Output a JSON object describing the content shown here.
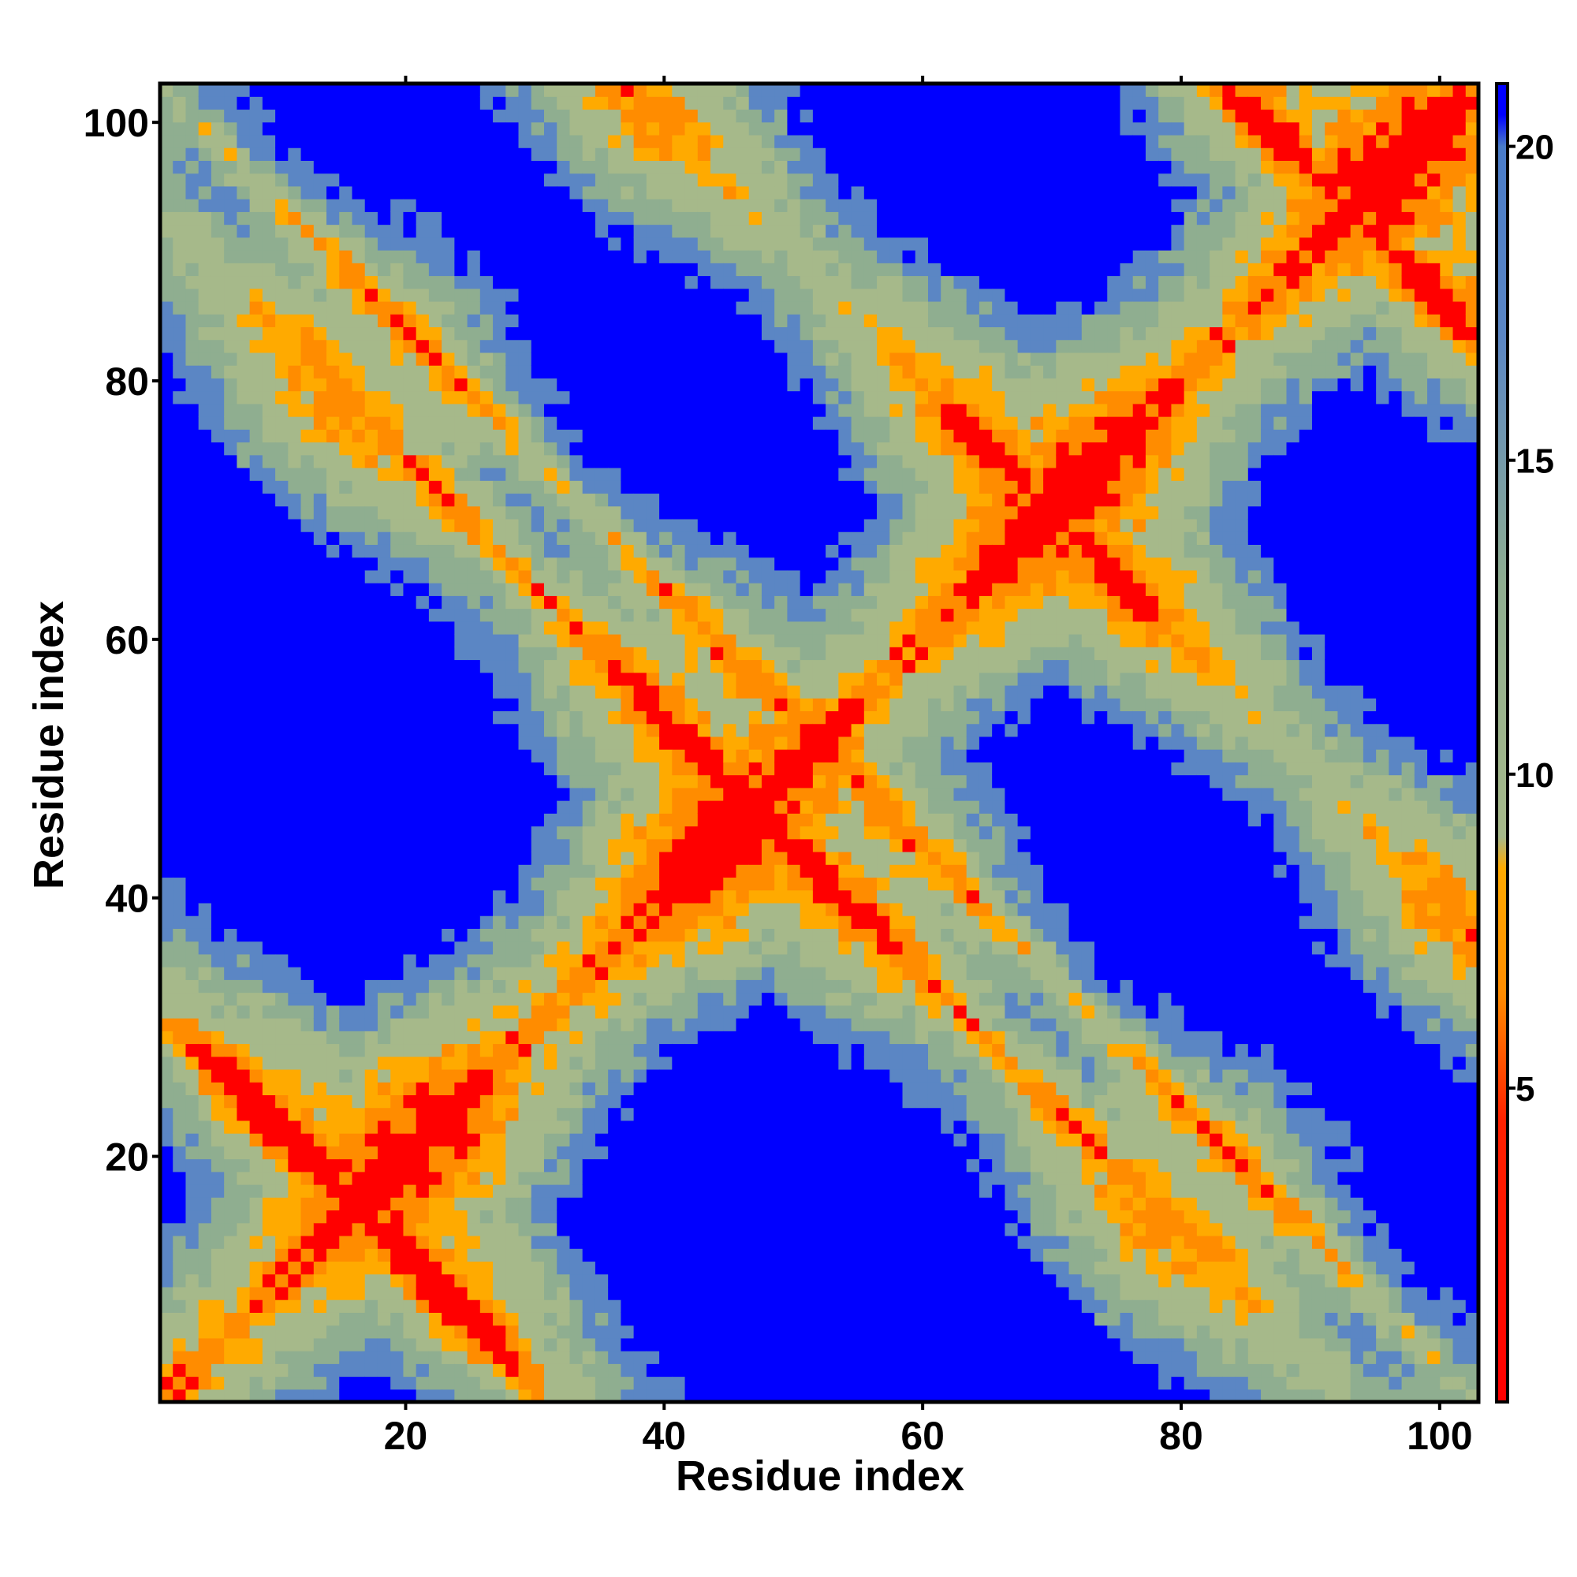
{
  "chart_data": {
    "type": "heatmap",
    "title": "",
    "xlabel": "Residue index",
    "ylabel": "Residue index",
    "n_residues": 103,
    "xlim": [
      1,
      103
    ],
    "ylim": [
      1,
      103
    ],
    "x_ticks": [
      20,
      40,
      60,
      80,
      100
    ],
    "y_ticks": [
      20,
      40,
      60,
      80,
      100
    ],
    "colorbar": {
      "ticks": [
        5,
        10,
        15,
        20
      ],
      "range": [
        0,
        21
      ],
      "stops": [
        {
          "value": 0,
          "color": "#ff0000"
        },
        {
          "value": 4.5,
          "color": "#ff2200"
        },
        {
          "value": 6.5,
          "color": "#ff8c00"
        },
        {
          "value": 8.5,
          "color": "#ffaa00"
        },
        {
          "value": 9.0,
          "color": "#a6b98a"
        },
        {
          "value": 13.0,
          "color": "#8fae90"
        },
        {
          "value": 17.0,
          "color": "#5b86c4"
        },
        {
          "value": 20.0,
          "color": "#4a7cc8"
        },
        {
          "value": 20.5,
          "color": "#0000ff"
        },
        {
          "value": 21,
          "color": "#0000ff"
        }
      ]
    },
    "cell_colors": {
      "contact": "#ff0000",
      "close": "#ff8c00",
      "near": "#ffaa00",
      "medium": "#a6b98a",
      "medium_far": "#8fae90",
      "far": "#5b86c4",
      "none": "#0000ff"
    },
    "grid": false,
    "legend": "colorbar-right",
    "description": "Symmetric residue-residue distance map with red main diagonal, orange anti-diagonal strands near (1-30, 30-1), (62-80, 62-80) and (80-100, 100-80), and blue low-contact regions."
  }
}
